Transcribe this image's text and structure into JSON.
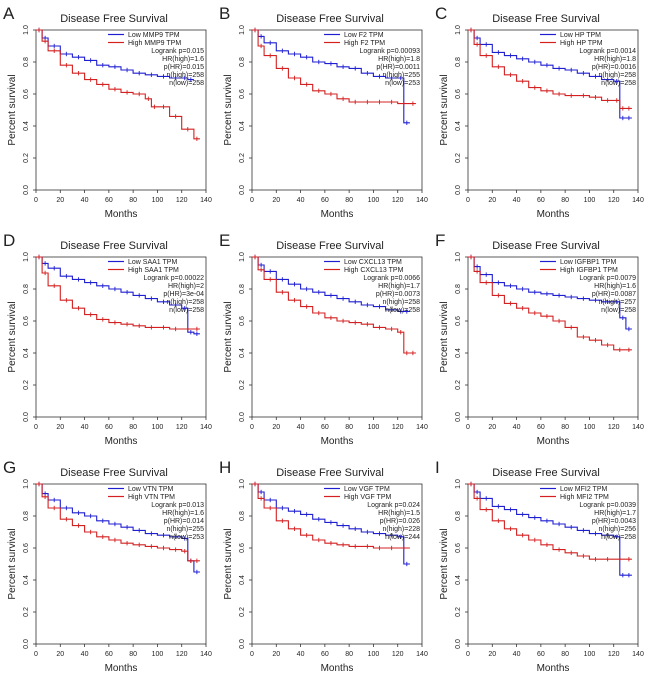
{
  "figure": {
    "colors": {
      "low": "#1f1fd2",
      "high": "#d42020",
      "axis": "#333333",
      "text": "#222222"
    }
  },
  "chart_data": [
    {
      "panel_letter": "A",
      "type": "line",
      "title": "Disease Free Survival",
      "xlabel": "Months",
      "ylabel": "Percent survival",
      "xlim": [
        0,
        140
      ],
      "ylim": [
        0,
        1
      ],
      "xticks": [
        "0",
        "20",
        "40",
        "60",
        "80",
        "100",
        "120",
        "140"
      ],
      "yticks": [
        "0.0",
        "0.2",
        "0.4",
        "0.6",
        "0.8",
        "1.0"
      ],
      "legend": [
        "Low MMP9 TPM",
        "High MMP9 TPM"
      ],
      "stats": [
        "Logrank p=0.015",
        "HR(high)=1.6",
        "p(HR)=0.015",
        "n(high)=258",
        "n(low)=258"
      ],
      "series": [
        {
          "name": "Low MMP9 TPM",
          "x": [
            0,
            5,
            10,
            20,
            30,
            40,
            50,
            60,
            70,
            80,
            90,
            100,
            110,
            120,
            125,
            130
          ],
          "y": [
            1,
            0.95,
            0.9,
            0.85,
            0.83,
            0.81,
            0.78,
            0.77,
            0.75,
            0.73,
            0.72,
            0.71,
            0.7,
            0.7,
            0.69,
            0.69
          ]
        },
        {
          "name": "High MMP9 TPM",
          "x": [
            0,
            5,
            10,
            20,
            30,
            40,
            50,
            60,
            70,
            80,
            90,
            95,
            100,
            110,
            120,
            130,
            135
          ],
          "y": [
            1,
            0.93,
            0.87,
            0.78,
            0.73,
            0.69,
            0.66,
            0.63,
            0.61,
            0.6,
            0.57,
            0.52,
            0.52,
            0.46,
            0.38,
            0.32,
            0.32
          ]
        }
      ]
    },
    {
      "panel_letter": "B",
      "type": "line",
      "title": "Disease Free Survival",
      "xlabel": "Months",
      "ylabel": "Percent survival",
      "xlim": [
        0,
        140
      ],
      "ylim": [
        0,
        1
      ],
      "xticks": [
        "0",
        "20",
        "40",
        "60",
        "80",
        "100",
        "120",
        "140"
      ],
      "yticks": [
        "0.0",
        "0.2",
        "0.4",
        "0.6",
        "0.8",
        "1.0"
      ],
      "legend": [
        "Low F2 TPM",
        "High F2 TPM"
      ],
      "stats": [
        "Logrank p=0.00093",
        "HR(high)=1.8",
        "p(HR)=0.0011",
        "n(high)=255",
        "n(low)=253"
      ],
      "series": [
        {
          "name": "Low F2 TPM",
          "x": [
            0,
            5,
            10,
            20,
            30,
            40,
            50,
            60,
            70,
            80,
            90,
            100,
            110,
            120,
            125,
            130
          ],
          "y": [
            1,
            0.96,
            0.92,
            0.87,
            0.85,
            0.83,
            0.8,
            0.79,
            0.77,
            0.76,
            0.73,
            0.71,
            0.7,
            0.7,
            0.42,
            0.42
          ]
        },
        {
          "name": "High F2 TPM",
          "x": [
            0,
            5,
            10,
            20,
            30,
            40,
            50,
            60,
            70,
            80,
            90,
            100,
            110,
            120,
            130,
            135
          ],
          "y": [
            1,
            0.9,
            0.84,
            0.76,
            0.7,
            0.66,
            0.62,
            0.6,
            0.57,
            0.55,
            0.55,
            0.55,
            0.55,
            0.54,
            0.54,
            0.54
          ]
        }
      ]
    },
    {
      "panel_letter": "C",
      "type": "line",
      "title": "Disease Free Survival",
      "xlabel": "Months",
      "ylabel": "Percent survival",
      "xlim": [
        0,
        140
      ],
      "ylim": [
        0,
        1
      ],
      "xticks": [
        "0",
        "20",
        "40",
        "60",
        "80",
        "100",
        "120",
        "140"
      ],
      "yticks": [
        "0.0",
        "0.2",
        "0.4",
        "0.6",
        "0.8",
        "1.0"
      ],
      "legend": [
        "Low HP TPM",
        "High HP TPM"
      ],
      "stats": [
        "Logrank p=0.0014",
        "HR(high)=1.8",
        "p(HR)=0.0016",
        "n(high)=258",
        "n(low)=258"
      ],
      "series": [
        {
          "name": "Low HP TPM",
          "x": [
            0,
            5,
            10,
            20,
            30,
            40,
            50,
            60,
            70,
            80,
            90,
            100,
            110,
            120,
            125,
            130,
            135
          ],
          "y": [
            1,
            0.95,
            0.91,
            0.86,
            0.84,
            0.82,
            0.8,
            0.78,
            0.76,
            0.75,
            0.73,
            0.71,
            0.69,
            0.68,
            0.45,
            0.45,
            0.45
          ]
        },
        {
          "name": "High HP TPM",
          "x": [
            0,
            5,
            10,
            20,
            30,
            40,
            50,
            60,
            70,
            80,
            90,
            100,
            110,
            120,
            125,
            130,
            135
          ],
          "y": [
            1,
            0.91,
            0.84,
            0.77,
            0.72,
            0.68,
            0.64,
            0.62,
            0.6,
            0.59,
            0.59,
            0.58,
            0.56,
            0.56,
            0.51,
            0.51,
            0.51
          ]
        }
      ]
    },
    {
      "panel_letter": "D",
      "type": "line",
      "title": "Disease Free Survival",
      "xlabel": "Months",
      "ylabel": "Percent survival",
      "xlim": [
        0,
        140
      ],
      "ylim": [
        0,
        1
      ],
      "xticks": [
        "0",
        "20",
        "40",
        "60",
        "80",
        "100",
        "120",
        "140"
      ],
      "yticks": [
        "0.0",
        "0.2",
        "0.4",
        "0.6",
        "0.8",
        "1.0"
      ],
      "legend": [
        "Low SAA1 TPM",
        "High SAA1 TPM"
      ],
      "stats": [
        "Logrank p=0.00022",
        "HR(high)=2",
        "p(HR)=3e-04",
        "n(high)=258",
        "n(low)=258"
      ],
      "series": [
        {
          "name": "Low SAA1 TPM",
          "x": [
            0,
            5,
            10,
            20,
            30,
            40,
            50,
            60,
            70,
            80,
            90,
            100,
            110,
            120,
            125,
            130,
            135
          ],
          "y": [
            1,
            0.96,
            0.93,
            0.88,
            0.86,
            0.84,
            0.82,
            0.8,
            0.78,
            0.76,
            0.74,
            0.72,
            0.7,
            0.68,
            0.53,
            0.52,
            0.52
          ]
        },
        {
          "name": "High SAA1 TPM",
          "x": [
            0,
            5,
            10,
            20,
            30,
            40,
            50,
            60,
            70,
            80,
            90,
            100,
            110,
            120,
            130,
            135
          ],
          "y": [
            1,
            0.9,
            0.82,
            0.73,
            0.68,
            0.64,
            0.61,
            0.59,
            0.58,
            0.57,
            0.56,
            0.56,
            0.55,
            0.55,
            0.55,
            0.55
          ]
        }
      ]
    },
    {
      "panel_letter": "E",
      "type": "line",
      "title": "Disease Free Survival",
      "xlabel": "Months",
      "ylabel": "Percent survival",
      "xlim": [
        0,
        140
      ],
      "ylim": [
        0,
        1
      ],
      "xticks": [
        "0",
        "20",
        "40",
        "60",
        "80",
        "100",
        "120",
        "140"
      ],
      "yticks": [
        "0.0",
        "0.2",
        "0.4",
        "0.6",
        "0.8",
        "1.0"
      ],
      "legend": [
        "Low CXCL13 TPM",
        "High CXCL13 TPM"
      ],
      "stats": [
        "Logrank p=0.0066",
        "HR(high)=1.7",
        "p(HR)=0.0073",
        "n(high)=258",
        "n(low)=258"
      ],
      "series": [
        {
          "name": "Low CXCL13 TPM",
          "x": [
            0,
            5,
            10,
            20,
            30,
            40,
            50,
            60,
            70,
            80,
            90,
            100,
            110,
            120,
            125,
            130
          ],
          "y": [
            1,
            0.95,
            0.91,
            0.86,
            0.83,
            0.8,
            0.78,
            0.76,
            0.74,
            0.72,
            0.7,
            0.69,
            0.67,
            0.66,
            0.66,
            0.66
          ]
        },
        {
          "name": "High CXCL13 TPM",
          "x": [
            0,
            5,
            10,
            20,
            30,
            40,
            50,
            60,
            70,
            80,
            90,
            100,
            110,
            120,
            125,
            130,
            135
          ],
          "y": [
            1,
            0.92,
            0.86,
            0.78,
            0.73,
            0.69,
            0.65,
            0.62,
            0.6,
            0.59,
            0.58,
            0.56,
            0.55,
            0.53,
            0.4,
            0.4,
            0.4
          ]
        }
      ]
    },
    {
      "panel_letter": "F",
      "type": "line",
      "title": "Disease Free Survival",
      "xlabel": "Months",
      "ylabel": "Percent survival",
      "xlim": [
        0,
        140
      ],
      "ylim": [
        0,
        1
      ],
      "xticks": [
        "0",
        "20",
        "40",
        "60",
        "80",
        "100",
        "120",
        "140"
      ],
      "yticks": [
        "0.0",
        "0.2",
        "0.4",
        "0.6",
        "0.8",
        "1.0"
      ],
      "legend": [
        "Low IGFBP1 TPM",
        "High IGFBP1 TPM"
      ],
      "stats": [
        "Logrank p=0.0079",
        "HR(high)=1.6",
        "p(HR)=0.0087",
        "n(high)=257",
        "n(low)=258"
      ],
      "series": [
        {
          "name": "Low IGFBP1 TPM",
          "x": [
            0,
            5,
            10,
            20,
            30,
            40,
            50,
            60,
            70,
            80,
            90,
            100,
            110,
            120,
            125,
            130,
            135
          ],
          "y": [
            1,
            0.94,
            0.89,
            0.84,
            0.82,
            0.8,
            0.78,
            0.77,
            0.76,
            0.75,
            0.74,
            0.73,
            0.72,
            0.72,
            0.62,
            0.55,
            0.55
          ]
        },
        {
          "name": "High IGFBP1 TPM",
          "x": [
            0,
            5,
            10,
            20,
            30,
            40,
            50,
            60,
            70,
            80,
            90,
            100,
            110,
            120,
            130,
            135
          ],
          "y": [
            1,
            0.91,
            0.84,
            0.76,
            0.71,
            0.68,
            0.65,
            0.63,
            0.6,
            0.56,
            0.5,
            0.48,
            0.45,
            0.42,
            0.42,
            0.42
          ]
        }
      ]
    },
    {
      "panel_letter": "G",
      "type": "line",
      "title": "Disease Free Survival",
      "xlabel": "Months",
      "ylabel": "Percent survival",
      "xlim": [
        0,
        140
      ],
      "ylim": [
        0,
        1
      ],
      "xticks": [
        "0",
        "20",
        "40",
        "60",
        "80",
        "100",
        "120",
        "140"
      ],
      "yticks": [
        "0.0",
        "0.2",
        "0.4",
        "0.6",
        "0.8",
        "1.0"
      ],
      "legend": [
        "Low VTN TPM",
        "High VTN TPM"
      ],
      "stats": [
        "Logrank p=0.013",
        "HR(high)=1.6",
        "p(HR)=0.014",
        "n(high)=255",
        "n(low)=253"
      ],
      "series": [
        {
          "name": "Low VTN TPM",
          "x": [
            0,
            5,
            10,
            20,
            30,
            40,
            50,
            60,
            70,
            80,
            90,
            100,
            110,
            120,
            125,
            130,
            135
          ],
          "y": [
            1,
            0.94,
            0.9,
            0.85,
            0.82,
            0.8,
            0.77,
            0.75,
            0.73,
            0.71,
            0.69,
            0.68,
            0.67,
            0.66,
            0.52,
            0.45,
            0.45
          ]
        },
        {
          "name": "High VTN TPM",
          "x": [
            0,
            5,
            10,
            20,
            30,
            40,
            50,
            60,
            70,
            80,
            90,
            100,
            110,
            120,
            125,
            130,
            135
          ],
          "y": [
            1,
            0.92,
            0.85,
            0.78,
            0.74,
            0.7,
            0.67,
            0.65,
            0.63,
            0.62,
            0.61,
            0.6,
            0.59,
            0.58,
            0.52,
            0.52,
            0.52
          ]
        }
      ]
    },
    {
      "panel_letter": "H",
      "type": "line",
      "title": "Disease Free Survival",
      "xlabel": "Months",
      "ylabel": "Percent survival",
      "xlim": [
        0,
        140
      ],
      "ylim": [
        0,
        1
      ],
      "xticks": [
        "0",
        "20",
        "40",
        "60",
        "80",
        "100",
        "120",
        "140"
      ],
      "yticks": [
        "0.0",
        "0.2",
        "0.4",
        "0.6",
        "0.8",
        "1.0"
      ],
      "legend": [
        "Low VGF TPM",
        "High VGF TPM"
      ],
      "stats": [
        "Logrank p=0.024",
        "HR(high)=1.5",
        "p(HR)=0.026",
        "n(high)=228",
        "n(low)=244"
      ],
      "series": [
        {
          "name": "Low VGF TPM",
          "x": [
            0,
            5,
            10,
            20,
            30,
            40,
            50,
            60,
            70,
            80,
            90,
            100,
            110,
            120,
            125,
            130
          ],
          "y": [
            1,
            0.95,
            0.9,
            0.85,
            0.83,
            0.81,
            0.78,
            0.76,
            0.74,
            0.72,
            0.7,
            0.69,
            0.68,
            0.67,
            0.5,
            0.5
          ]
        },
        {
          "name": "High VGF TPM",
          "x": [
            0,
            5,
            10,
            20,
            30,
            40,
            50,
            60,
            70,
            80,
            90,
            100,
            110,
            120,
            130
          ],
          "y": [
            1,
            0.91,
            0.85,
            0.77,
            0.72,
            0.68,
            0.65,
            0.63,
            0.62,
            0.61,
            0.61,
            0.6,
            0.6,
            0.6,
            0.6
          ]
        }
      ]
    },
    {
      "panel_letter": "I",
      "type": "line",
      "title": "Disease Free Survival",
      "xlabel": "Months",
      "ylabel": "Percent survival",
      "xlim": [
        0,
        140
      ],
      "ylim": [
        0,
        1
      ],
      "xticks": [
        "0",
        "20",
        "40",
        "60",
        "80",
        "100",
        "120",
        "140"
      ],
      "yticks": [
        "0.0",
        "0.2",
        "0.4",
        "0.6",
        "0.8",
        "1.0"
      ],
      "legend": [
        "Low MFI2 TPM",
        "High MFI2 TPM"
      ],
      "stats": [
        "Logrank p=0.0039",
        "HR(high)=1.7",
        "p(HR)=0.0043",
        "n(high)=256",
        "n(low)=258"
      ],
      "series": [
        {
          "name": "Low MFI2 TPM",
          "x": [
            0,
            5,
            10,
            20,
            30,
            40,
            50,
            60,
            70,
            80,
            90,
            100,
            110,
            120,
            125,
            130,
            135
          ],
          "y": [
            1,
            0.95,
            0.91,
            0.86,
            0.84,
            0.81,
            0.79,
            0.77,
            0.75,
            0.73,
            0.71,
            0.69,
            0.68,
            0.67,
            0.43,
            0.43,
            0.43
          ]
        },
        {
          "name": "High MFI2 TPM",
          "x": [
            0,
            5,
            10,
            20,
            30,
            40,
            50,
            60,
            70,
            80,
            90,
            100,
            110,
            120,
            130,
            135
          ],
          "y": [
            1,
            0.91,
            0.84,
            0.77,
            0.72,
            0.68,
            0.65,
            0.62,
            0.59,
            0.57,
            0.55,
            0.53,
            0.53,
            0.53,
            0.53,
            0.53
          ]
        }
      ]
    }
  ]
}
